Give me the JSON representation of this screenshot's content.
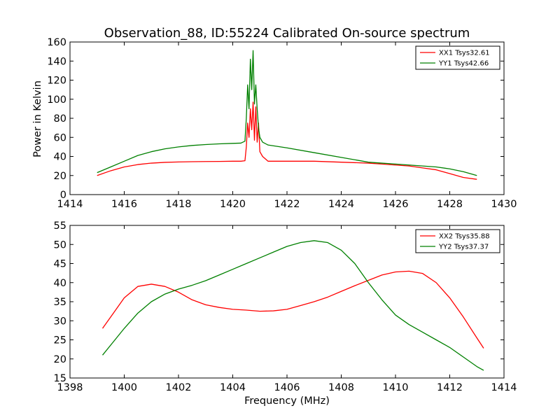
{
  "figure": {
    "title": "Observation_88, ID:55224 Calibrated On-source spectrum",
    "ylabel": "Power in Kelvin",
    "xlabel": "Frequency (MHz)"
  },
  "chart_data": [
    {
      "type": "line",
      "title": "Observation_88, ID:55224 Calibrated On-source spectrum",
      "xlabel": "",
      "ylabel": "Power in Kelvin",
      "xlim": [
        1414,
        1430
      ],
      "ylim": [
        0,
        160
      ],
      "xticks": [
        "1414",
        "1416",
        "1418",
        "1420",
        "1422",
        "1424",
        "1426",
        "1428",
        "1430"
      ],
      "yticks": [
        "0",
        "20",
        "40",
        "60",
        "80",
        "100",
        "120",
        "140",
        "160"
      ],
      "legend_position": "top-right",
      "grid": false,
      "series": [
        {
          "name": "XX1 Tsys32.61",
          "color": "#ff0000",
          "x": [
            1415.0,
            1415.5,
            1416.0,
            1416.5,
            1417.0,
            1417.5,
            1418.0,
            1418.5,
            1419.0,
            1419.5,
            1420.0,
            1420.3,
            1420.45,
            1420.5,
            1420.55,
            1420.6,
            1420.65,
            1420.7,
            1420.75,
            1420.8,
            1420.85,
            1420.9,
            1420.95,
            1421.0,
            1421.1,
            1421.3,
            1422.0,
            1423.0,
            1424.0,
            1425.0,
            1425.5,
            1426.0,
            1426.5,
            1427.0,
            1427.5,
            1428.0,
            1428.5,
            1429.0
          ],
          "y": [
            20,
            25,
            29,
            31.5,
            33,
            33.8,
            34.2,
            34.5,
            34.7,
            34.8,
            35,
            35,
            35.5,
            50,
            75,
            60,
            90,
            68,
            97,
            57,
            92,
            55,
            75,
            45,
            40,
            35,
            35,
            35,
            34,
            33,
            32,
            31,
            30,
            28,
            26,
            22,
            18,
            16
          ]
        },
        {
          "name": "YY1 Tsys42.66",
          "color": "#008000",
          "x": [
            1415.0,
            1415.5,
            1416.0,
            1416.5,
            1417.0,
            1417.5,
            1418.0,
            1418.5,
            1419.0,
            1419.5,
            1420.0,
            1420.3,
            1420.45,
            1420.5,
            1420.55,
            1420.6,
            1420.65,
            1420.7,
            1420.75,
            1420.8,
            1420.85,
            1420.9,
            1420.95,
            1421.0,
            1421.1,
            1421.3,
            1422.0,
            1423.0,
            1424.0,
            1425.0,
            1425.5,
            1426.0,
            1426.5,
            1427.0,
            1427.5,
            1428.0,
            1428.5,
            1429.0
          ],
          "y": [
            23,
            29,
            35,
            41,
            45,
            48,
            50,
            51.5,
            52.5,
            53.2,
            53.7,
            54,
            56,
            80,
            115,
            90,
            142,
            110,
            151,
            95,
            115,
            90,
            70,
            60,
            55,
            52,
            49,
            44,
            39,
            34,
            33,
            32,
            31,
            30,
            29,
            27,
            24,
            20
          ]
        }
      ]
    },
    {
      "type": "line",
      "title": "",
      "xlabel": "Frequency (MHz)",
      "ylabel": "",
      "xlim": [
        1398,
        1414
      ],
      "ylim": [
        15,
        55
      ],
      "xticks": [
        "1398",
        "1400",
        "1402",
        "1404",
        "1406",
        "1408",
        "1410",
        "1412",
        "1414"
      ],
      "yticks": [
        "15",
        "20",
        "25",
        "30",
        "35",
        "40",
        "45",
        "50",
        "55"
      ],
      "legend_position": "top-right",
      "grid": false,
      "series": [
        {
          "name": "XX2 Tsys35.88",
          "color": "#ff0000",
          "x": [
            1399.2,
            1399.6,
            1400.0,
            1400.5,
            1401.0,
            1401.5,
            1402.0,
            1402.5,
            1403.0,
            1403.5,
            1404.0,
            1404.5,
            1405.0,
            1405.5,
            1406.0,
            1406.5,
            1407.0,
            1407.5,
            1408.0,
            1408.5,
            1409.0,
            1409.5,
            1410.0,
            1410.5,
            1411.0,
            1411.5,
            1412.0,
            1412.5,
            1413.0,
            1413.25
          ],
          "y": [
            28,
            32,
            36,
            39,
            39.6,
            39,
            37.5,
            35.5,
            34.2,
            33.5,
            33,
            32.8,
            32.5,
            32.6,
            33,
            34,
            35,
            36.2,
            37.7,
            39.2,
            40.6,
            42,
            42.8,
            43,
            42.4,
            40,
            36,
            31,
            25.5,
            22.8
          ]
        },
        {
          "name": "YY2 Tsys37.37",
          "color": "#008000",
          "x": [
            1399.2,
            1399.6,
            1400.0,
            1400.5,
            1401.0,
            1401.5,
            1402.0,
            1402.5,
            1403.0,
            1403.5,
            1404.0,
            1404.5,
            1405.0,
            1405.5,
            1406.0,
            1406.5,
            1407.0,
            1407.5,
            1408.0,
            1408.5,
            1409.0,
            1409.5,
            1410.0,
            1410.5,
            1411.0,
            1411.5,
            1412.0,
            1412.5,
            1413.0,
            1413.25
          ],
          "y": [
            21,
            24.5,
            28,
            32,
            35,
            37,
            38.3,
            39.3,
            40.5,
            42,
            43.5,
            45,
            46.5,
            48,
            49.5,
            50.5,
            51,
            50.5,
            48.5,
            45,
            40,
            35.5,
            31.5,
            29,
            27,
            25,
            23,
            20.5,
            18,
            17
          ]
        }
      ]
    }
  ]
}
